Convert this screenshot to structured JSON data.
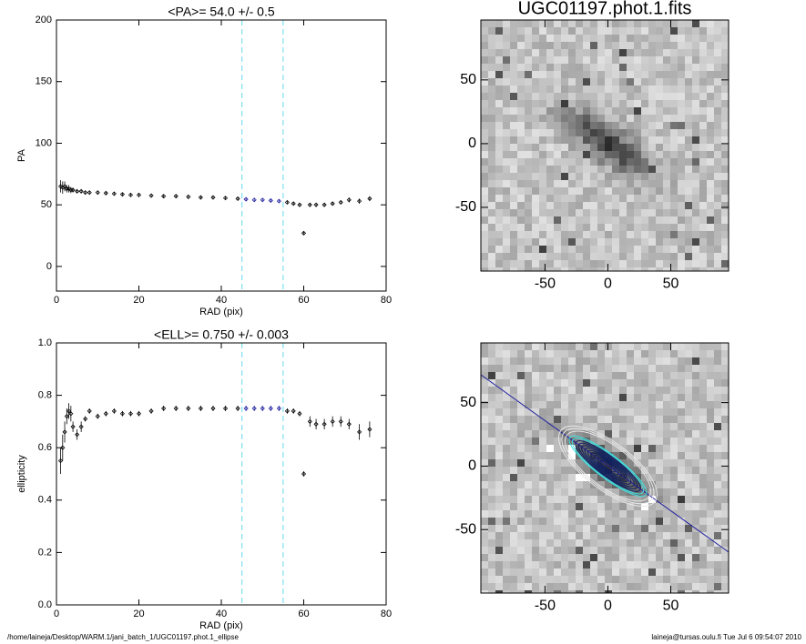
{
  "chart_data": [
    {
      "type": "scatter",
      "title": "<PA>=  54.0 +/-   0.5",
      "x_label": "RAD (pix)",
      "y_label": "PA",
      "xlim": [
        0,
        80
      ],
      "ylim": [
        -20,
        200
      ],
      "xticks": [
        0,
        20,
        40,
        60,
        80
      ],
      "yticks": [
        0,
        50,
        100,
        150,
        200
      ],
      "reference_lines": [
        45,
        55
      ],
      "reference_color": "#80e0f0",
      "color": "#000000",
      "highlight_color": "#2020a0",
      "x": [
        1,
        1.5,
        2,
        2.5,
        3,
        3.5,
        4,
        5,
        6,
        7,
        8,
        10,
        12,
        14,
        16,
        18,
        20,
        23,
        26,
        29,
        32,
        35,
        38,
        41,
        44,
        46,
        48,
        50,
        52,
        54,
        56,
        57.5,
        59,
        60,
        61.5,
        63,
        65,
        67,
        69,
        71,
        73.5,
        76
      ],
      "values": [
        65,
        64,
        65,
        63,
        63,
        62,
        62,
        61,
        61,
        60,
        60,
        60,
        59.5,
        59,
        58.5,
        58,
        58,
        57.5,
        57,
        57,
        56.5,
        56,
        56,
        55.5,
        55,
        54.5,
        54,
        54,
        53.5,
        53,
        52,
        51,
        50,
        27,
        50,
        50,
        50,
        51,
        52,
        54,
        53,
        55
      ],
      "errors": [
        5,
        5,
        4,
        3,
        3,
        2.5,
        2,
        1.5,
        1.5,
        1,
        1,
        1,
        1,
        1,
        1,
        1,
        1,
        1,
        1,
        1,
        1,
        1,
        1,
        1,
        1,
        1,
        1,
        1,
        1,
        1,
        1,
        1,
        1,
        1,
        1,
        1,
        1.5,
        1.5,
        1.5,
        2,
        2,
        2
      ]
    },
    {
      "type": "scatter",
      "title": "<ELL>= 0.750 +/-  0.003",
      "x_label": "RAD (pix)",
      "y_label": "ellipticity",
      "xlim": [
        0,
        80
      ],
      "ylim": [
        0,
        1
      ],
      "xticks": [
        0,
        20,
        40,
        60,
        80
      ],
      "yticks": [
        {
          "value": 0,
          "label": "0.0"
        },
        {
          "value": 0.2,
          "label": "0.2"
        },
        {
          "value": 0.4,
          "label": "0.4"
        },
        {
          "value": 0.6,
          "label": "0.6"
        },
        {
          "value": 0.8,
          "label": "0.8"
        },
        {
          "value": 1,
          "label": "1.0"
        }
      ],
      "reference_lines": [
        45,
        55
      ],
      "reference_color": "#80e0f0",
      "color": "#000000",
      "highlight_color": "#2020a0",
      "x": [
        1,
        1.5,
        2,
        2.5,
        3,
        3.5,
        4,
        5,
        6,
        7,
        8,
        10,
        12,
        14,
        16,
        18,
        20,
        23,
        26,
        29,
        32,
        35,
        38,
        41,
        44,
        46,
        48,
        50,
        52,
        54,
        56,
        57.5,
        59,
        60,
        61.5,
        63,
        65,
        67,
        69,
        71,
        73.5,
        76
      ],
      "values": [
        0.55,
        0.6,
        0.66,
        0.72,
        0.74,
        0.73,
        0.68,
        0.65,
        0.68,
        0.71,
        0.74,
        0.72,
        0.73,
        0.74,
        0.73,
        0.73,
        0.73,
        0.74,
        0.75,
        0.75,
        0.75,
        0.75,
        0.75,
        0.75,
        0.75,
        0.75,
        0.75,
        0.75,
        0.75,
        0.75,
        0.74,
        0.74,
        0.73,
        0.5,
        0.7,
        0.69,
        0.69,
        0.7,
        0.7,
        0.69,
        0.66,
        0.67
      ],
      "errors": [
        0.05,
        0.05,
        0.04,
        0.03,
        0.03,
        0.03,
        0.02,
        0.02,
        0.02,
        0.01,
        0.01,
        0.01,
        0.01,
        0.01,
        0.01,
        0.01,
        0.01,
        0.01,
        0.01,
        0.01,
        0.01,
        0.01,
        0.01,
        0.01,
        0.01,
        0.01,
        0.01,
        0.01,
        0.01,
        0.01,
        0.01,
        0.01,
        0.01,
        0.01,
        0.02,
        0.02,
        0.02,
        0.02,
        0.02,
        0.02,
        0.03,
        0.03
      ]
    },
    {
      "type": "image",
      "title": "UGC01197.phot.1.fits",
      "xlim": [
        -101,
        96
      ],
      "ylim": [
        -100,
        97
      ],
      "xticks": [
        -50,
        0,
        50
      ],
      "yticks": [
        -50,
        0,
        50
      ]
    },
    {
      "type": "image",
      "xlim": [
        -101,
        96
      ],
      "ylim": [
        -100,
        97
      ],
      "xticks": [
        -50,
        0,
        50
      ],
      "yticks": [
        -50,
        0,
        50
      ],
      "contours": true
    }
  ],
  "footer": {
    "left": "/home/laineja/Desktop/WARM.1/jani_batch_1/UGC01197.phot.1_ellipse",
    "right": "laineja@tursas.oulu.fi  Tue Jul  6 09:54:07 2010"
  }
}
